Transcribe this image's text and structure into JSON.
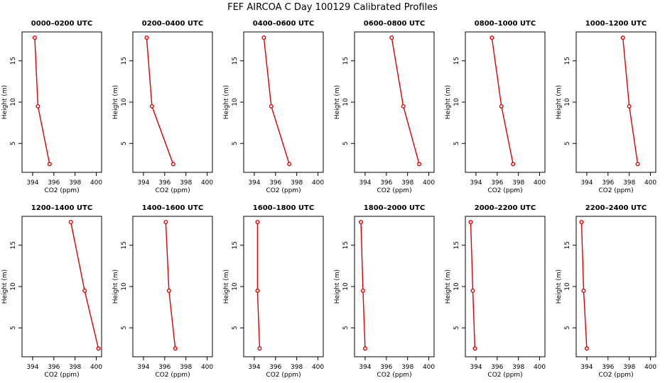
{
  "page": {
    "title": "FEF AIRCOA C  Day 100129  Calibrated Profiles"
  },
  "chart_data": [
    {
      "type": "line",
      "title": "0000–0200 UTC",
      "xlabel": "CO2 (ppm)",
      "ylabel": "Height (m)",
      "xlim": [
        393,
        400.5
      ],
      "ylim": [
        1.5,
        18.5
      ],
      "xticks": [
        394,
        396,
        398,
        400
      ],
      "yticks": [
        5,
        10,
        15
      ],
      "grid": false,
      "color": "#dd0000",
      "series": [
        {
          "x": [
            394.2,
            394.5,
            395.6
          ],
          "y": [
            17.8,
            9.5,
            2.5
          ]
        }
      ]
    },
    {
      "type": "line",
      "title": "0200–0400 UTC",
      "xlabel": "CO2 (ppm)",
      "ylabel": "Height (m)",
      "xlim": [
        393,
        400.5
      ],
      "ylim": [
        1.5,
        18.5
      ],
      "xticks": [
        394,
        396,
        398,
        400
      ],
      "yticks": [
        5,
        10,
        15
      ],
      "grid": false,
      "color": "#dd0000",
      "series": [
        {
          "x": [
            394.3,
            394.8,
            396.8
          ],
          "y": [
            17.8,
            9.5,
            2.5
          ]
        }
      ]
    },
    {
      "type": "line",
      "title": "0400–0600 UTC",
      "xlabel": "CO2 (ppm)",
      "ylabel": "Height (m)",
      "xlim": [
        393,
        400.5
      ],
      "ylim": [
        1.5,
        18.5
      ],
      "xticks": [
        394,
        396,
        398,
        400
      ],
      "yticks": [
        5,
        10,
        15
      ],
      "grid": false,
      "color": "#dd0000",
      "series": [
        {
          "x": [
            394.9,
            395.6,
            397.3
          ],
          "y": [
            17.8,
            9.5,
            2.5
          ]
        }
      ]
    },
    {
      "type": "line",
      "title": "0600–0800 UTC",
      "xlabel": "CO2 (ppm)",
      "ylabel": "Height (m)",
      "xlim": [
        393,
        400.5
      ],
      "ylim": [
        1.5,
        18.5
      ],
      "xticks": [
        394,
        396,
        398,
        400
      ],
      "yticks": [
        5,
        10,
        15
      ],
      "grid": false,
      "color": "#dd0000",
      "series": [
        {
          "x": [
            396.5,
            397.6,
            399.1
          ],
          "y": [
            17.8,
            9.5,
            2.5
          ]
        }
      ]
    },
    {
      "type": "line",
      "title": "0800–1000 UTC",
      "xlabel": "CO2 (ppm)",
      "ylabel": "Height (m)",
      "xlim": [
        393,
        400.5
      ],
      "ylim": [
        1.5,
        18.5
      ],
      "xticks": [
        394,
        396,
        398,
        400
      ],
      "yticks": [
        5,
        10,
        15
      ],
      "grid": false,
      "color": "#dd0000",
      "series": [
        {
          "x": [
            395.5,
            396.4,
            397.5
          ],
          "y": [
            17.8,
            9.5,
            2.5
          ]
        }
      ]
    },
    {
      "type": "line",
      "title": "1000–1200 UTC",
      "xlabel": "CO2 (ppm)",
      "ylabel": "Height (m)",
      "xlim": [
        393,
        400.5
      ],
      "ylim": [
        1.5,
        18.5
      ],
      "xticks": [
        394,
        396,
        398,
        400
      ],
      "yticks": [
        5,
        10,
        15
      ],
      "grid": false,
      "color": "#dd0000",
      "series": [
        {
          "x": [
            397.4,
            398.0,
            398.8
          ],
          "y": [
            17.8,
            9.5,
            2.5
          ]
        }
      ]
    },
    {
      "type": "line",
      "title": "1200–1400 UTC",
      "xlabel": "CO2 (ppm)",
      "ylabel": "Height (m)",
      "xlim": [
        393,
        400.5
      ],
      "ylim": [
        1.5,
        18.5
      ],
      "xticks": [
        394,
        396,
        398,
        400
      ],
      "yticks": [
        5,
        10,
        15
      ],
      "grid": false,
      "color": "#dd0000",
      "series": [
        {
          "x": [
            397.6,
            398.9,
            400.2
          ],
          "y": [
            17.8,
            9.5,
            2.5
          ]
        }
      ]
    },
    {
      "type": "line",
      "title": "1400–1600 UTC",
      "xlabel": "CO2 (ppm)",
      "ylabel": "Height (m)",
      "xlim": [
        393,
        400.5
      ],
      "ylim": [
        1.5,
        18.5
      ],
      "xticks": [
        394,
        396,
        398,
        400
      ],
      "yticks": [
        5,
        10,
        15
      ],
      "grid": false,
      "color": "#dd0000",
      "series": [
        {
          "x": [
            396.1,
            396.4,
            397.0
          ],
          "y": [
            17.8,
            9.5,
            2.5
          ]
        }
      ]
    },
    {
      "type": "line",
      "title": "1600–1800 UTC",
      "xlabel": "CO2 (ppm)",
      "ylabel": "Height (m)",
      "xlim": [
        393,
        400.5
      ],
      "ylim": [
        1.5,
        18.5
      ],
      "xticks": [
        394,
        396,
        398,
        400
      ],
      "yticks": [
        5,
        10,
        15
      ],
      "grid": false,
      "color": "#dd0000",
      "series": [
        {
          "x": [
            394.3,
            394.3,
            394.5
          ],
          "y": [
            17.8,
            9.5,
            2.5
          ]
        }
      ]
    },
    {
      "type": "line",
      "title": "1800–2000 UTC",
      "xlabel": "CO2 (ppm)",
      "ylabel": "Height (m)",
      "xlim": [
        393,
        400.5
      ],
      "ylim": [
        1.5,
        18.5
      ],
      "xticks": [
        394,
        396,
        398,
        400
      ],
      "yticks": [
        5,
        10,
        15
      ],
      "grid": false,
      "color": "#dd0000",
      "series": [
        {
          "x": [
            393.6,
            393.8,
            394.0
          ],
          "y": [
            17.8,
            9.5,
            2.5
          ]
        }
      ]
    },
    {
      "type": "line",
      "title": "2000–2200 UTC",
      "xlabel": "CO2 (ppm)",
      "ylabel": "Height (m)",
      "xlim": [
        393,
        400.5
      ],
      "ylim": [
        1.5,
        18.5
      ],
      "xticks": [
        394,
        396,
        398,
        400
      ],
      "yticks": [
        5,
        10,
        15
      ],
      "grid": false,
      "color": "#dd0000",
      "series": [
        {
          "x": [
            393.5,
            393.7,
            393.9
          ],
          "y": [
            17.8,
            9.5,
            2.5
          ]
        }
      ]
    },
    {
      "type": "line",
      "title": "2200–2400 UTC",
      "xlabel": "CO2 (ppm)",
      "ylabel": "Height (m)",
      "xlim": [
        393,
        400.5
      ],
      "ylim": [
        1.5,
        18.5
      ],
      "xticks": [
        394,
        396,
        398,
        400
      ],
      "yticks": [
        5,
        10,
        15
      ],
      "grid": false,
      "color": "#dd0000",
      "series": [
        {
          "x": [
            393.5,
            393.7,
            394.0
          ],
          "y": [
            17.8,
            9.5,
            2.5
          ]
        }
      ]
    }
  ]
}
